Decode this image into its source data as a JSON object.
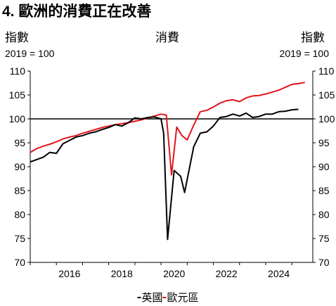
{
  "header": {
    "title": "4. 歐洲的消費正在改善",
    "left_axis_title": "指數",
    "left_axis_note": "2019 = 100",
    "right_axis_title": "指數",
    "right_axis_note": "2019 = 100"
  },
  "chart_data": {
    "type": "line",
    "title": "消費",
    "ylim": [
      70,
      110
    ],
    "xlim": [
      2015.0,
      2025.8
    ],
    "yticks": [
      70,
      75,
      80,
      85,
      90,
      95,
      100,
      105,
      110
    ],
    "xticks": [
      "2016",
      "2018",
      "2020",
      "2022",
      "2024"
    ],
    "reference_line": 100,
    "grid": false,
    "legend_position": "bottom",
    "series": [
      {
        "name": "英國",
        "color": "#000000",
        "points": [
          [
            2015.0,
            91.0
          ],
          [
            2015.25,
            91.5
          ],
          [
            2015.5,
            92.0
          ],
          [
            2015.75,
            93.0
          ],
          [
            2016.0,
            92.8
          ],
          [
            2016.25,
            94.8
          ],
          [
            2016.5,
            95.5
          ],
          [
            2016.75,
            96.2
          ],
          [
            2017.0,
            96.5
          ],
          [
            2017.25,
            97.0
          ],
          [
            2017.5,
            97.3
          ],
          [
            2017.75,
            97.8
          ],
          [
            2018.0,
            98.2
          ],
          [
            2018.25,
            98.8
          ],
          [
            2018.5,
            98.5
          ],
          [
            2018.75,
            99.2
          ],
          [
            2019.0,
            100.2
          ],
          [
            2019.25,
            100.0
          ],
          [
            2019.5,
            100.3
          ],
          [
            2019.75,
            100.4
          ],
          [
            2020.0,
            100.0
          ],
          [
            2020.1,
            97.0
          ],
          [
            2020.25,
            74.8
          ],
          [
            2020.5,
            89.2
          ],
          [
            2020.75,
            88.0
          ],
          [
            2020.9,
            84.6
          ],
          [
            2021.25,
            94.2
          ],
          [
            2021.5,
            97.0
          ],
          [
            2021.75,
            97.3
          ],
          [
            2022.0,
            98.5
          ],
          [
            2022.25,
            100.3
          ],
          [
            2022.5,
            100.5
          ],
          [
            2022.75,
            101.0
          ],
          [
            2023.0,
            100.6
          ],
          [
            2023.25,
            101.2
          ],
          [
            2023.5,
            100.3
          ],
          [
            2023.75,
            100.5
          ],
          [
            2024.0,
            101.0
          ],
          [
            2024.25,
            101.0
          ],
          [
            2024.5,
            101.5
          ],
          [
            2024.75,
            101.6
          ],
          [
            2025.0,
            101.9
          ],
          [
            2025.25,
            102.0
          ]
        ]
      },
      {
        "name": "歐元區",
        "color": "#e3151b",
        "points": [
          [
            2015.0,
            93.0
          ],
          [
            2015.25,
            93.8
          ],
          [
            2015.5,
            94.3
          ],
          [
            2015.75,
            94.7
          ],
          [
            2016.0,
            95.2
          ],
          [
            2016.25,
            95.8
          ],
          [
            2016.5,
            96.2
          ],
          [
            2016.75,
            96.5
          ],
          [
            2017.0,
            97.0
          ],
          [
            2017.25,
            97.4
          ],
          [
            2017.5,
            97.8
          ],
          [
            2017.75,
            98.2
          ],
          [
            2018.0,
            98.5
          ],
          [
            2018.25,
            98.8
          ],
          [
            2018.5,
            99.0
          ],
          [
            2018.75,
            99.2
          ],
          [
            2019.0,
            99.5
          ],
          [
            2019.25,
            99.8
          ],
          [
            2019.5,
            100.2
          ],
          [
            2019.75,
            100.6
          ],
          [
            2020.0,
            101.0
          ],
          [
            2020.2,
            100.8
          ],
          [
            2020.4,
            88.3
          ],
          [
            2020.6,
            98.3
          ],
          [
            2020.8,
            96.5
          ],
          [
            2021.0,
            95.6
          ],
          [
            2021.25,
            98.7
          ],
          [
            2021.5,
            101.5
          ],
          [
            2021.75,
            101.8
          ],
          [
            2022.0,
            102.5
          ],
          [
            2022.25,
            103.3
          ],
          [
            2022.5,
            103.8
          ],
          [
            2022.75,
            104.0
          ],
          [
            2023.0,
            103.6
          ],
          [
            2023.25,
            104.4
          ],
          [
            2023.5,
            104.8
          ],
          [
            2023.75,
            104.9
          ],
          [
            2024.0,
            105.2
          ],
          [
            2024.25,
            105.6
          ],
          [
            2024.5,
            106.0
          ],
          [
            2024.75,
            106.6
          ],
          [
            2025.0,
            107.2
          ],
          [
            2025.25,
            107.4
          ],
          [
            2025.5,
            107.6
          ]
        ]
      }
    ]
  }
}
